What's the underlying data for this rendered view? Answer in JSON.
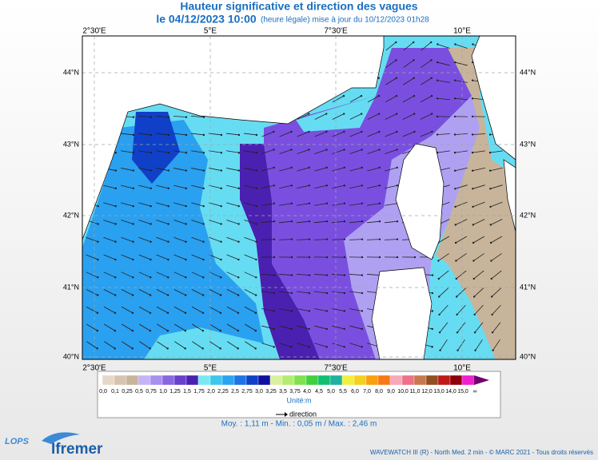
{
  "header": {
    "title": "Hauteur significative et direction des vagues",
    "date": "le 04/12/2023 10:00",
    "note": "(heure légale) mise à jour du 10/12/2023 01h28"
  },
  "map": {
    "lon_labels": [
      "2°30'E",
      "5°E",
      "7°30'E",
      "10°E"
    ],
    "lat_labels": [
      "44°N",
      "43°N",
      "42°N",
      "41°N",
      "40°N"
    ]
  },
  "legend": {
    "labels": [
      "0,0",
      "0,1",
      "0,25",
      "0,5",
      "0,75",
      "1,0",
      "1,25",
      "1,5",
      "1,75",
      "2,0",
      "2,25",
      "2,5",
      "2,75",
      "3,0",
      "3,25",
      "3,5",
      "3,75",
      "4,0",
      "4,5",
      "5,0",
      "5,5",
      "6,0",
      "7,0",
      "8,0",
      "9,0",
      "10,0",
      "11,0",
      "12,0",
      "13,0",
      "14,0",
      "15,0",
      "∞"
    ],
    "colors": [
      "#e6d8c8",
      "#d8c4ae",
      "#c8b49a",
      "#c4b4f4",
      "#a890ee",
      "#8a66e0",
      "#6a3fcc",
      "#4a20b0",
      "#7ae8f4",
      "#3cc8ec",
      "#2aa4f0",
      "#1e74e4",
      "#1040c8",
      "#1010a0",
      "#d8f0a0",
      "#b4ec70",
      "#80e050",
      "#40d040",
      "#10c070",
      "#20b0a0",
      "#f0f040",
      "#f4d020",
      "#f8a010",
      "#f87818",
      "#f8a8b8",
      "#f07088",
      "#c87850",
      "#905020",
      "#c01818",
      "#900008",
      "#f020d0",
      "#700070"
    ],
    "unit": "Unité:m",
    "direction": "direction",
    "stats": "Moy. : 1,11 m   -   Min. : 0,05 m / Max. : 2,46 m"
  },
  "footer": {
    "logo1": "LOPS",
    "logo2": "Ifremer",
    "credit": "WAVEWATCH III (R) - North Med. 2 min - © MARC 2021 - Tous droits réservés"
  }
}
